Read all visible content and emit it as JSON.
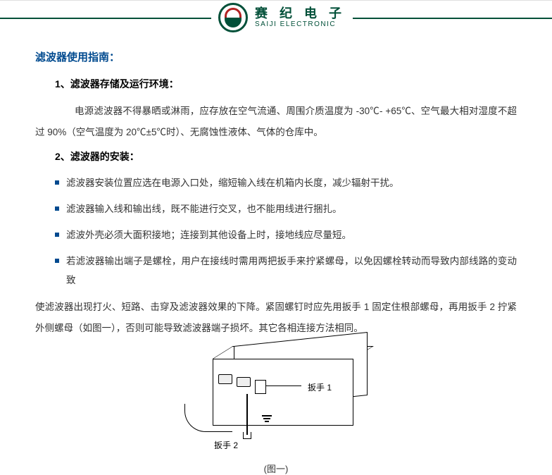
{
  "logo": {
    "cn": "赛 纪 电 子",
    "en": "SAIJI ELECTRONIC"
  },
  "title": "滤波器使用指南：",
  "section1": {
    "head": "1、滤波器存储及运行环境：",
    "body": "电源滤波器不得暴晒或淋雨，应存放在空气流通、周围介质温度为 -30℃- +65℃、空气最大相对湿度不超过 90%（空气温度为 20℃±5℃时）、无腐蚀性液体、气体的仓库中。"
  },
  "section2": {
    "head": "2、滤波器的安装：",
    "bullets": [
      "滤波器安装位置应选在电源入口处，缩短输入线在机箱内长度，减少辐射干扰。",
      "滤波器输入线和输出线，既不能进行交叉，也不能用线进行捆扎。",
      "滤波外壳必须大面积接地；连接到其他设备上时，接地线应尽量短。",
      "若滤波器输出端子是螺栓，用户在接线时需用两把扳手来拧紧螺母，以免因螺栓转动而导致内部线路的变动致"
    ],
    "cont": "使滤波器出现打火、短路、击穿及滤波器效果的下降。紧固螺钉时应先用扳手 1 固定住根部螺母，再用扳手 2 拧紧外侧螺母（如图一），否则可能导致滤波器端子损坏。其它各相连接方法相同。"
  },
  "figure": {
    "label_wrench1": "扳手 1",
    "label_wrench2": "扳手 2",
    "caption": "(图一)"
  },
  "colors": {
    "brand_green": "#025039",
    "brand_red": "#b22222",
    "title_blue": "#004a8f",
    "text": "#333333",
    "bg": "#ffffff"
  }
}
